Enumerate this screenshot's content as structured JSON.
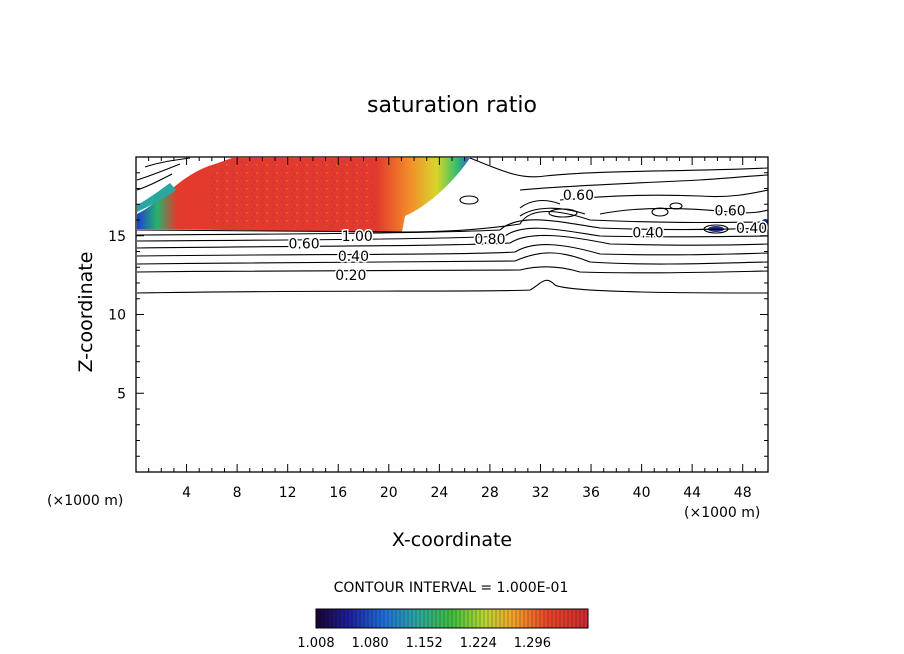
{
  "chart_data": {
    "type": "heatmap",
    "subtype": "filled contour with contour lines",
    "title": "saturation ratio",
    "xlabel": "X-coordinate",
    "ylabel": "Z-coordinate",
    "x_unit": "(×1000 m)",
    "y_unit": "(×1000 m)",
    "xlim": [
      0,
      50
    ],
    "ylim": [
      0,
      20
    ],
    "x_ticks": [
      4,
      8,
      12,
      16,
      20,
      24,
      28,
      32,
      36,
      40,
      44,
      48
    ],
    "y_ticks": [
      5,
      10,
      15
    ],
    "contour_interval_text": "CONTOUR INTERVAL = 1.000E-01",
    "contour_labels": [
      {
        "text": "1.00",
        "x": 17.5,
        "z": 15.0
      },
      {
        "text": "0.60",
        "x": 13.3,
        "z": 14.5
      },
      {
        "text": "0.40",
        "x": 17.2,
        "z": 13.7
      },
      {
        "text": "0.20",
        "x": 17.0,
        "z": 12.5
      },
      {
        "text": "0.80",
        "x": 28.0,
        "z": 14.8
      },
      {
        "text": "0.60",
        "x": 35.0,
        "z": 17.6
      },
      {
        "text": "0.40",
        "x": 40.5,
        "z": 15.2
      },
      {
        "text": "0.60",
        "x": 47.0,
        "z": 16.6
      },
      {
        "text": "0.40",
        "x": 48.7,
        "z": 15.5
      }
    ],
    "colorbar": {
      "ticks": [
        "1.008",
        "1.080",
        "1.152",
        "1.224",
        "1.296"
      ],
      "range": [
        1.008,
        1.37
      ],
      "colors": [
        "#1a0533",
        "#1e1e9a",
        "#1f6fd8",
        "#2aa6a0",
        "#3fbf3f",
        "#b9d632",
        "#f2a72a",
        "#e8452a",
        "#cc2a30"
      ]
    },
    "supersaturated_region": {
      "description_note": "",
      "x_range": [
        4,
        26
      ],
      "z_range": [
        15.5,
        19.9
      ]
    },
    "grid": false
  }
}
